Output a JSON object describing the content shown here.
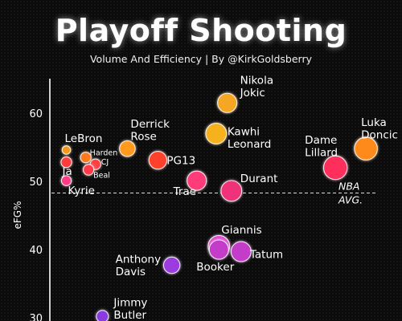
{
  "title": "Playoff Shooting",
  "subtitle": "Volume And Efficiency | By @KirkGoldsberry",
  "chart_data": {
    "type": "scatter",
    "ylabel": "eFG%",
    "yticks": [
      30,
      40,
      50,
      60
    ],
    "ylim": [
      30,
      65
    ],
    "reference_line": {
      "y": 49,
      "label_line1": "NBA",
      "label_line2": "AVG."
    },
    "colors": {
      "yellow": "#f5b21f",
      "orange": "#ff7a1c",
      "red": "#ff2e45",
      "magenta": "#e639a6",
      "purple": "#9b3be0"
    },
    "points": [
      {
        "name": "Nikola Jokic",
        "label": [
          "Nikola",
          "Jokic"
        ],
        "volume": 12.5,
        "efg": 61.5,
        "size": 1.0,
        "color": "#f5a623"
      },
      {
        "name": "Luka Doncic",
        "label": [
          "Luka",
          "Doncic"
        ],
        "volume": 22.5,
        "efg": 54.8,
        "size": 1.25,
        "color": "#ff8a1e"
      },
      {
        "name": "Kawhi Leonard",
        "label": [
          "Kawhi",
          "Leonard"
        ],
        "volume": 11.7,
        "efg": 57.0,
        "size": 1.1,
        "color": "#f5b21f"
      },
      {
        "name": "Derrick Rose",
        "label": [
          "Derrick",
          "Rose"
        ],
        "volume": 5.3,
        "efg": 54.8,
        "size": 0.75,
        "color": "#ff9a1e"
      },
      {
        "name": "Dame Lillard",
        "label": [
          "Dame",
          "Lillard"
        ],
        "volume": 20.3,
        "efg": 52.0,
        "size": 1.3,
        "color": "#ff2e5a"
      },
      {
        "name": "LeBron",
        "label": [
          "LeBron"
        ],
        "volume": 0.9,
        "efg": 54.6,
        "size": 0.25,
        "color": "#f39a1e"
      },
      {
        "name": "Harden",
        "label": [
          "Harden"
        ],
        "volume": 2.3,
        "efg": 53.5,
        "size": 0.4,
        "color": "#ff7a1c"
      },
      {
        "name": "CJ",
        "label": [
          "CJ"
        ],
        "volume": 3.0,
        "efg": 52.5,
        "size": 0.4,
        "color": "#ff3f3f"
      },
      {
        "name": "Ja",
        "label": [
          "Ja"
        ],
        "volume": 0.9,
        "efg": 52.8,
        "size": 0.4,
        "color": "#ff3a3a"
      },
      {
        "name": "Beal",
        "label": [
          "Beal"
        ],
        "volume": 2.5,
        "efg": 51.7,
        "size": 0.4,
        "color": "#ff3a4a"
      },
      {
        "name": "PG13",
        "label": [
          "PG13"
        ],
        "volume": 7.5,
        "efg": 53.1,
        "size": 0.9,
        "color": "#ff3f2a"
      },
      {
        "name": "Kyrie",
        "label": [
          "Kyrie"
        ],
        "volume": 0.9,
        "efg": 50.1,
        "size": 0.35,
        "color": "#ff3a8a"
      },
      {
        "name": "Trae",
        "label": [
          "Trae"
        ],
        "volume": 10.3,
        "efg": 50.1,
        "size": 1.0,
        "color": "#ff3a7a"
      },
      {
        "name": "Durant",
        "label": [
          "Durant"
        ],
        "volume": 12.8,
        "efg": 48.6,
        "size": 1.1,
        "color": "#f0307a"
      },
      {
        "name": "Giannis",
        "label": [
          "Giannis"
        ],
        "volume": 11.9,
        "efg": 40.5,
        "size": 1.15,
        "color": "#e04ad0"
      },
      {
        "name": "Booker",
        "label": [
          "Booker"
        ],
        "volume": 11.9,
        "efg": 40.0,
        "size": 1.0,
        "color": "#c43ec8"
      },
      {
        "name": "Tatum",
        "label": [
          "Tatum"
        ],
        "volume": 13.5,
        "efg": 39.7,
        "size": 1.05,
        "color": "#c43ec8"
      },
      {
        "name": "Anthony Davis",
        "label": [
          "Anthony",
          "Davis"
        ],
        "volume": 8.5,
        "efg": 37.7,
        "size": 0.8,
        "color": "#9b3be0"
      },
      {
        "name": "Jimmy Butler",
        "label": [
          "Jimmy",
          "Butler"
        ],
        "volume": 3.5,
        "efg": 30.2,
        "size": 0.5,
        "color": "#8a3ae0"
      }
    ]
  }
}
